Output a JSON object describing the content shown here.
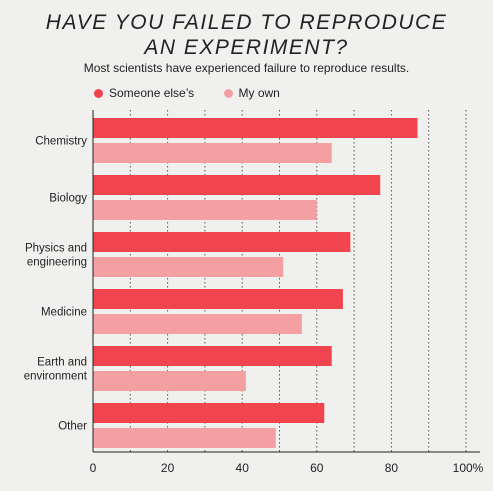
{
  "title_lines": [
    "HAVE YOU FAILED TO REPRODUCE",
    "AN EXPERIMENT?"
  ],
  "subtitle": "Most scientists have experienced failure to reproduce results.",
  "colors": {
    "someone_else": "#f0444f",
    "my_own": "#f4a0a3",
    "grid": "#555555",
    "axis": "#222222"
  },
  "chart_data": {
    "type": "bar",
    "orientation": "horizontal",
    "title": "HAVE YOU FAILED TO REPRODUCE AN EXPERIMENT?",
    "subtitle": "Most scientists have experienced failure to reproduce results.",
    "categories": [
      [
        "Chemistry"
      ],
      [
        "Biology"
      ],
      [
        "Physics and",
        "engineering"
      ],
      [
        "Medicine"
      ],
      [
        "Earth and",
        "environment"
      ],
      [
        "Other"
      ]
    ],
    "series": [
      {
        "name": "Someone else’s",
        "values": [
          87,
          77,
          69,
          67,
          64,
          62
        ]
      },
      {
        "name": "My own",
        "values": [
          64,
          60,
          51,
          56,
          41,
          49
        ]
      }
    ],
    "xlim": [
      0,
      100
    ],
    "xticks": [
      0,
      20,
      40,
      60,
      80,
      100
    ],
    "xtick_labels": [
      "0",
      "20",
      "40",
      "60",
      "80",
      "100%"
    ],
    "grid": {
      "dotted_vertical": true,
      "every": 10
    },
    "legend_position": "top-left"
  }
}
